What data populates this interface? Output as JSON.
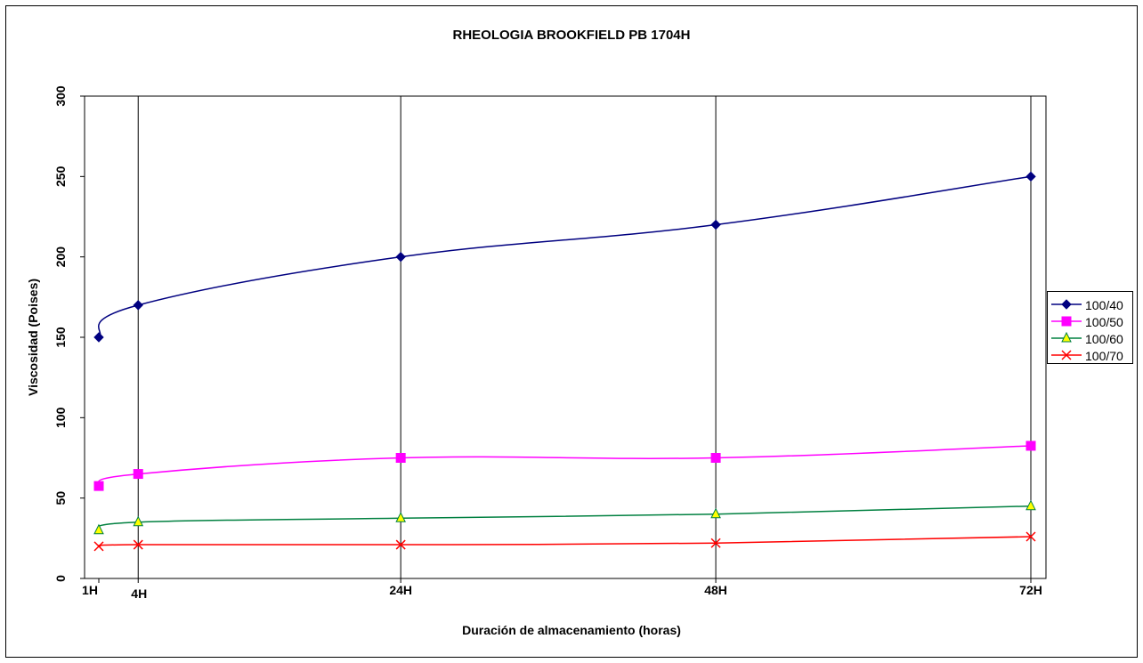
{
  "chart_data": {
    "type": "line",
    "title": "RHEOLOGIA BROOKFIELD PB 1704H",
    "xlabel": "Duración de almacenamiento (horas)",
    "ylabel": "Viscosidad (Poises)",
    "x": [
      1,
      4,
      24,
      48,
      72
    ],
    "categories": [
      "1H",
      "4H",
      "24H",
      "48H",
      "72H"
    ],
    "xlim": [
      1,
      72
    ],
    "ylim": [
      0,
      300
    ],
    "yticks": [
      0,
      50,
      100,
      150,
      200,
      250,
      300
    ],
    "grid": "vertical lines at category ticks",
    "legend_position": "right",
    "series": [
      {
        "name": "100/40",
        "color": "#000080",
        "marker": "diamond",
        "values": [
          150,
          170,
          200,
          220,
          250
        ]
      },
      {
        "name": "100/50",
        "color": "#FF00FF",
        "marker": "square",
        "values": [
          57.5,
          65,
          75,
          75,
          82.5
        ]
      },
      {
        "name": "100/60",
        "color": "#008040",
        "marker": "triangle",
        "values": [
          30,
          35,
          37.5,
          40,
          45
        ]
      },
      {
        "name": "100/70",
        "color": "#FF0000",
        "marker": "x",
        "values": [
          20,
          21,
          21,
          22,
          26
        ]
      }
    ]
  }
}
